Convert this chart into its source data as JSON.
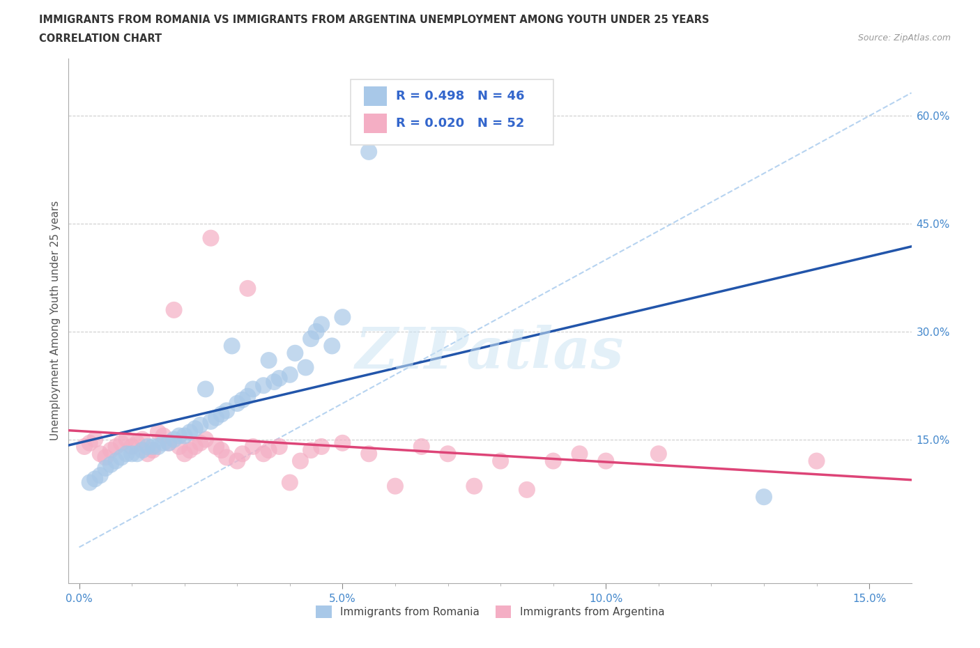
{
  "title_line1": "IMMIGRANTS FROM ROMANIA VS IMMIGRANTS FROM ARGENTINA UNEMPLOYMENT AMONG YOUTH UNDER 25 YEARS",
  "title_line2": "CORRELATION CHART",
  "source": "Source: ZipAtlas.com",
  "ylabel": "Unemployment Among Youth under 25 years",
  "xticks": [
    0.0,
    0.05,
    0.1,
    0.15
  ],
  "xticklabels": [
    "0.0%",
    "5.0%",
    "10.0%",
    "15.0%"
  ],
  "x_minor_ticks": [
    0.0,
    0.01,
    0.02,
    0.03,
    0.04,
    0.05,
    0.06,
    0.07,
    0.08,
    0.09,
    0.1,
    0.11,
    0.12,
    0.13,
    0.14,
    0.15
  ],
  "yticks": [
    0.15,
    0.3,
    0.45,
    0.6
  ],
  "yticklabels": [
    "15.0%",
    "30.0%",
    "45.0%",
    "60.0%"
  ],
  "xlim": [
    -0.002,
    0.158
  ],
  "ylim": [
    -0.05,
    0.68
  ],
  "romania_color": "#a8c8e8",
  "argentina_color": "#f4aec4",
  "romania_line_color": "#2255aa",
  "argentina_line_color": "#dd4477",
  "diagonal_color": "#aaccee",
  "legend_R_romania": "R = 0.498",
  "legend_N_romania": "N = 46",
  "legend_R_argentina": "R = 0.020",
  "legend_N_argentina": "N = 52",
  "legend_label_romania": "Immigrants from Romania",
  "legend_label_argentina": "Immigrants from Argentina",
  "watermark": "ZIPatlas",
  "romania_x": [
    0.002,
    0.003,
    0.004,
    0.005,
    0.006,
    0.007,
    0.008,
    0.009,
    0.01,
    0.011,
    0.012,
    0.013,
    0.014,
    0.015,
    0.016,
    0.017,
    0.018,
    0.019,
    0.02,
    0.021,
    0.022,
    0.023,
    0.024,
    0.025,
    0.026,
    0.027,
    0.028,
    0.029,
    0.03,
    0.031,
    0.032,
    0.033,
    0.035,
    0.036,
    0.037,
    0.038,
    0.04,
    0.041,
    0.043,
    0.044,
    0.045,
    0.046,
    0.048,
    0.05,
    0.055,
    0.13
  ],
  "romania_y": [
    0.09,
    0.095,
    0.1,
    0.11,
    0.115,
    0.12,
    0.125,
    0.13,
    0.13,
    0.13,
    0.135,
    0.14,
    0.14,
    0.14,
    0.145,
    0.145,
    0.15,
    0.155,
    0.155,
    0.16,
    0.165,
    0.17,
    0.22,
    0.175,
    0.18,
    0.185,
    0.19,
    0.28,
    0.2,
    0.205,
    0.21,
    0.22,
    0.225,
    0.26,
    0.23,
    0.235,
    0.24,
    0.27,
    0.25,
    0.29,
    0.3,
    0.31,
    0.28,
    0.32,
    0.55,
    0.07
  ],
  "argentina_x": [
    0.001,
    0.002,
    0.003,
    0.004,
    0.005,
    0.006,
    0.007,
    0.008,
    0.009,
    0.01,
    0.011,
    0.012,
    0.013,
    0.014,
    0.015,
    0.016,
    0.017,
    0.018,
    0.019,
    0.02,
    0.021,
    0.022,
    0.023,
    0.024,
    0.025,
    0.026,
    0.027,
    0.028,
    0.03,
    0.031,
    0.032,
    0.033,
    0.035,
    0.036,
    0.038,
    0.04,
    0.042,
    0.044,
    0.046,
    0.05,
    0.055,
    0.06,
    0.065,
    0.07,
    0.075,
    0.08,
    0.085,
    0.09,
    0.095,
    0.1,
    0.11,
    0.14
  ],
  "argentina_y": [
    0.14,
    0.145,
    0.15,
    0.13,
    0.125,
    0.135,
    0.14,
    0.145,
    0.15,
    0.14,
    0.145,
    0.15,
    0.13,
    0.135,
    0.16,
    0.155,
    0.145,
    0.33,
    0.14,
    0.13,
    0.135,
    0.14,
    0.145,
    0.15,
    0.43,
    0.14,
    0.135,
    0.125,
    0.12,
    0.13,
    0.36,
    0.14,
    0.13,
    0.135,
    0.14,
    0.09,
    0.12,
    0.135,
    0.14,
    0.145,
    0.13,
    0.085,
    0.14,
    0.13,
    0.085,
    0.12,
    0.08,
    0.12,
    0.13,
    0.12,
    0.13,
    0.12
  ]
}
